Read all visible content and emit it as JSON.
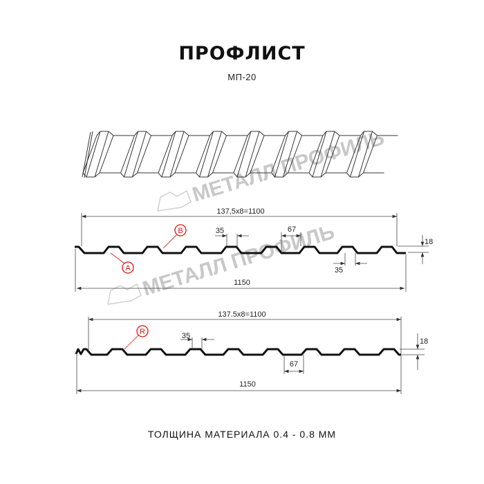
{
  "header": {
    "title": "ПРОФЛИСТ",
    "model": "МП-20"
  },
  "watermark": {
    "text": "МЕТАЛЛ ПРОФИЛЬ",
    "color": "#c8c8c8"
  },
  "profile_top": {
    "pitch_label": "137,5x8=1100",
    "width_label": "1150",
    "rib_top_label": "35",
    "rib_bottom_label": "35",
    "trough_label": "67",
    "height_label": "18",
    "callout_a": "A",
    "callout_b": "B"
  },
  "profile_bottom": {
    "pitch_label": "137.5x8=1100",
    "width_label": "1150",
    "rib_top_label": "35",
    "trough_label": "67",
    "height_label": "18",
    "callout_r": "R"
  },
  "footer": {
    "thickness": "ТОЛЩИНА МАТЕРИАЛА 0.4 - 0.8 ММ"
  },
  "colors": {
    "profile": "#111111",
    "callout": "#e01010",
    "dimension": "#333333"
  }
}
